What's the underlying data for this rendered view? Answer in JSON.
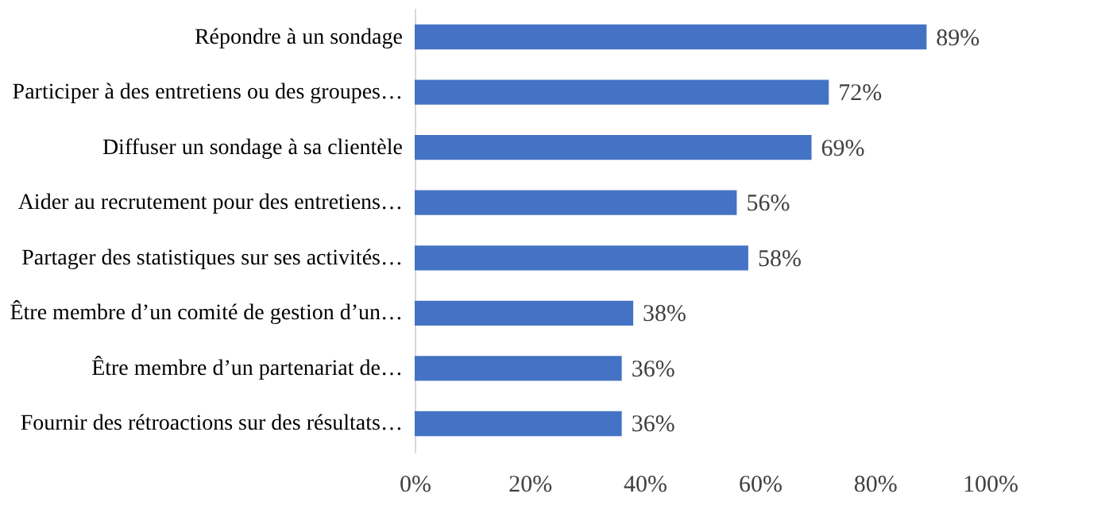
{
  "chart_data": {
    "type": "bar",
    "orientation": "horizontal",
    "categories": [
      "Répondre à un sondage",
      "Participer à des entretiens ou des groupes…",
      "Diffuser un sondage à sa clientèle",
      "Aider au recrutement pour des entretiens…",
      "Partager des statistiques sur ses activités…",
      "Être membre d’un comité de gestion d’un…",
      "Être membre d’un partenariat de…",
      "Fournir des rétroactions sur des résultats…"
    ],
    "values": [
      89,
      72,
      69,
      56,
      58,
      38,
      36,
      36
    ],
    "value_labels": [
      "89%",
      "72%",
      "69%",
      "56%",
      "58%",
      "38%",
      "36%",
      "36%"
    ],
    "color": "#4472c4",
    "xlim": [
      0,
      100
    ],
    "xticks": [
      {
        "value": 0,
        "label": "0%"
      },
      {
        "value": 20,
        "label": "20%"
      },
      {
        "value": 40,
        "label": "40%"
      },
      {
        "value": 60,
        "label": "60%"
      },
      {
        "value": 80,
        "label": "80%"
      },
      {
        "value": 100,
        "label": "100%"
      }
    ],
    "grid": false
  }
}
